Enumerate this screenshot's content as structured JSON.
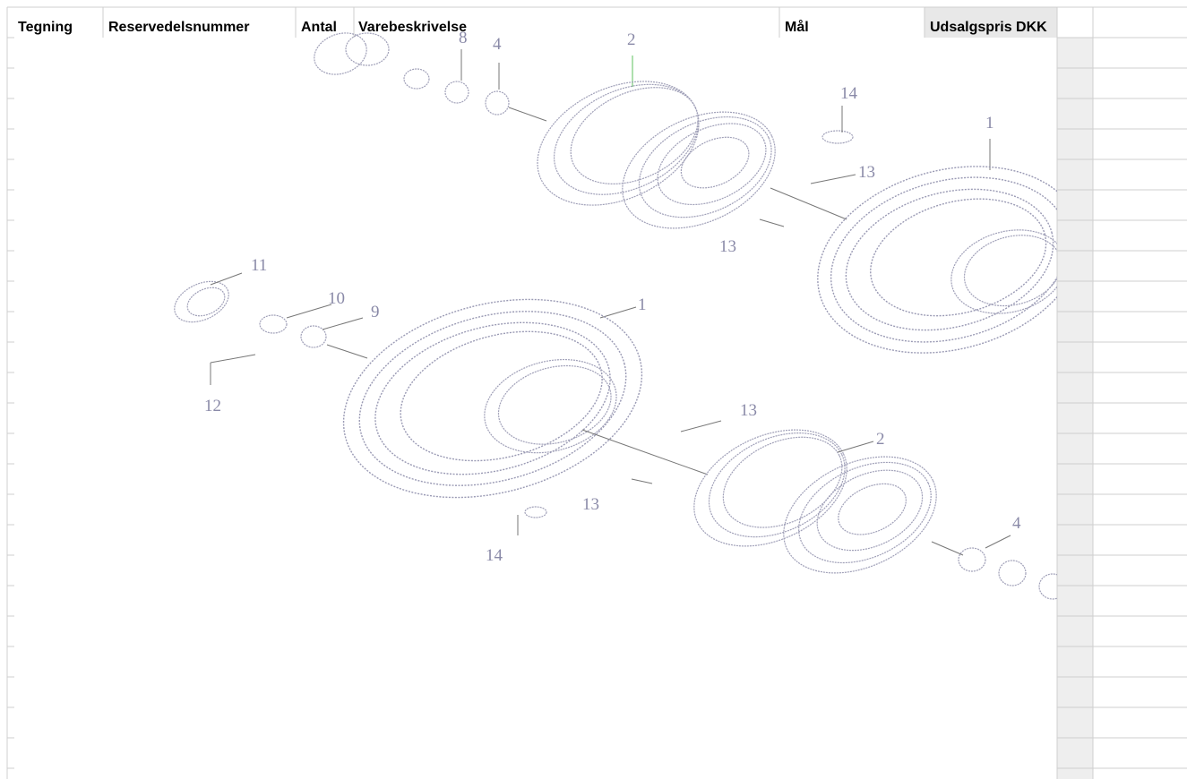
{
  "header": {
    "columns": [
      "Tegning",
      "Reservedelsnummer",
      "Antal",
      "Varebeskrivelse",
      "Mål",
      "Udsalgspris DKK"
    ]
  },
  "drawing": {
    "callouts": [
      "8",
      "4",
      "2",
      "14",
      "1",
      "13",
      "13",
      "11",
      "10",
      "9",
      "1",
      "12",
      "13",
      "2",
      "13",
      "14",
      "4"
    ]
  }
}
